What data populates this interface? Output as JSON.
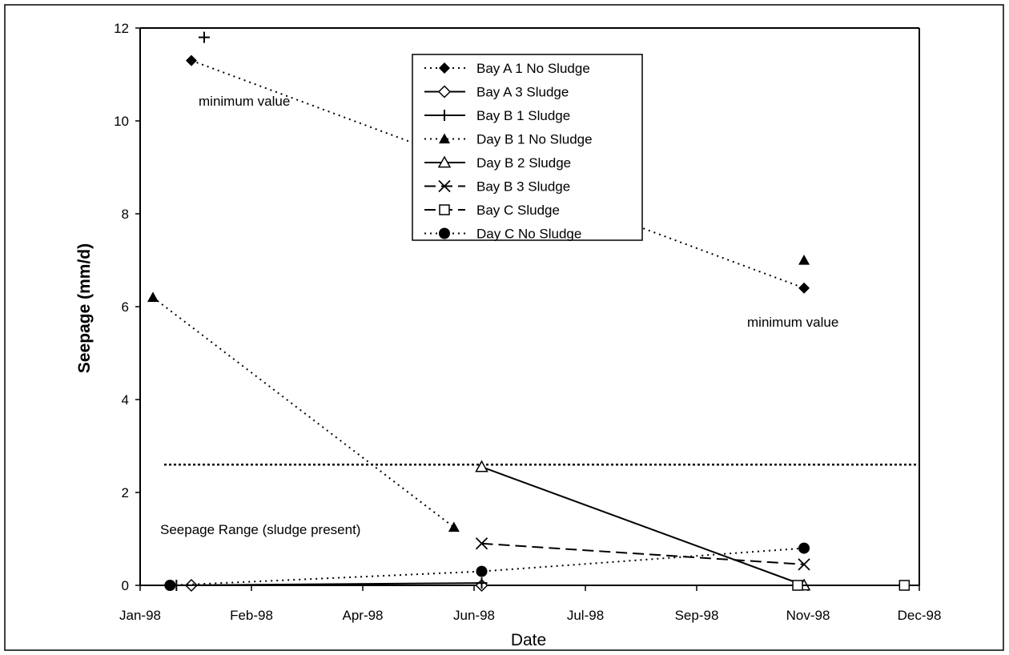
{
  "chart_data": {
    "type": "line",
    "xlabel": "Date",
    "ylabel": "Seepage (mm/d)",
    "ylim": [
      0,
      12
    ],
    "yticks": [
      0,
      2,
      4,
      6,
      8,
      10,
      12
    ],
    "xticks": [
      "Jan-98",
      "Feb-98",
      "Apr-98",
      "Jun-98",
      "Jul-98",
      "Sep-98",
      "Nov-98",
      "Dec-98"
    ],
    "grid": false,
    "legend_position": "top-center",
    "series": [
      {
        "name": "Bay A 1 No Sludge",
        "style": "dotted",
        "marker": "filled-diamond",
        "points": [
          [
            "1998-01-25",
            11.3
          ],
          [
            "1998-11-08",
            6.4
          ]
        ]
      },
      {
        "name": "Bay A 3 Sludge",
        "style": "solid",
        "marker": "open-diamond",
        "points": [
          [
            "1998-01-25",
            0.0
          ],
          [
            "1998-06-10",
            0.0
          ]
        ]
      },
      {
        "name": "Bay B 1 Sludge",
        "style": "solid",
        "marker": "plus",
        "points": [
          [
            "1998-01-18",
            0.0
          ],
          [
            "1998-06-10",
            0.05
          ]
        ]
      },
      {
        "name": "Day B 1 No Sludge",
        "style": "dotted",
        "marker": "filled-triangle",
        "points": [
          [
            "1998-01-07",
            6.2
          ],
          [
            "1998-05-28",
            1.25
          ]
        ]
      },
      {
        "name": "Day B 2 Sludge",
        "style": "solid",
        "marker": "open-triangle",
        "points": [
          [
            "1998-06-10",
            2.55
          ],
          [
            "1998-11-08",
            0.0
          ]
        ]
      },
      {
        "name": "Bay B 3 Sludge",
        "style": "dashed",
        "marker": "x",
        "points": [
          [
            "1998-06-10",
            0.9
          ],
          [
            "1998-11-08",
            0.45
          ]
        ]
      },
      {
        "name": "Bay C Sludge",
        "style": "dashed",
        "marker": "open-square",
        "points": [
          [
            "1998-11-05",
            0.0
          ],
          [
            "1998-12-25",
            0.0
          ]
        ]
      },
      {
        "name": "Day C No Sludge",
        "style": "dotted",
        "marker": "filled-circle",
        "points": [
          [
            "1998-01-15",
            0.0
          ],
          [
            "1998-06-10",
            0.3
          ],
          [
            "1998-11-08",
            0.8
          ]
        ]
      }
    ],
    "extra_markers": [
      {
        "marker": "plus",
        "points": [
          [
            "1998-01-31",
            11.8
          ]
        ]
      },
      {
        "marker": "filled-triangle",
        "points": [
          [
            "1998-11-08",
            7.0
          ]
        ]
      }
    ],
    "reference_line": {
      "y": 2.6,
      "style": "dotted"
    },
    "annotations": [
      {
        "text": "minimum value",
        "anchor": "upper-left"
      },
      {
        "text": "minimum value",
        "anchor": "right"
      },
      {
        "text": "Seepage Range (sludge present)",
        "anchor": "lower-left"
      }
    ]
  }
}
